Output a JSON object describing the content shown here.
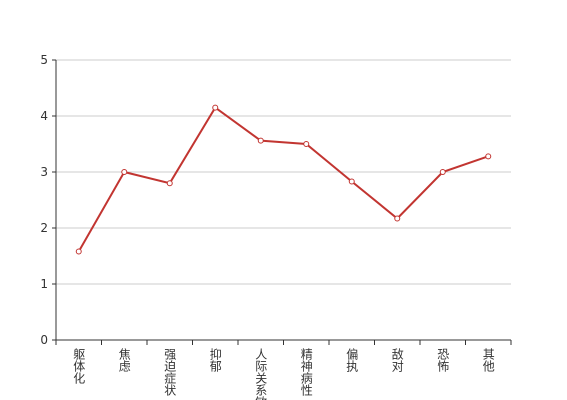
{
  "chart_data": {
    "type": "line",
    "categories": [
      "躯体化",
      "焦虑",
      "强迫症状",
      "抑郁",
      "人际关系敏感",
      "精神病性",
      "偏执",
      "敌对",
      "恐怖",
      "其他"
    ],
    "values": [
      1.58,
      3.0,
      2.8,
      4.15,
      3.56,
      3.5,
      2.83,
      2.17,
      3.0,
      3.28
    ],
    "color": "#c23531",
    "ylim": [
      0,
      5
    ],
    "yticks": [
      0,
      1,
      2,
      3,
      4,
      5
    ],
    "grid": true
  }
}
